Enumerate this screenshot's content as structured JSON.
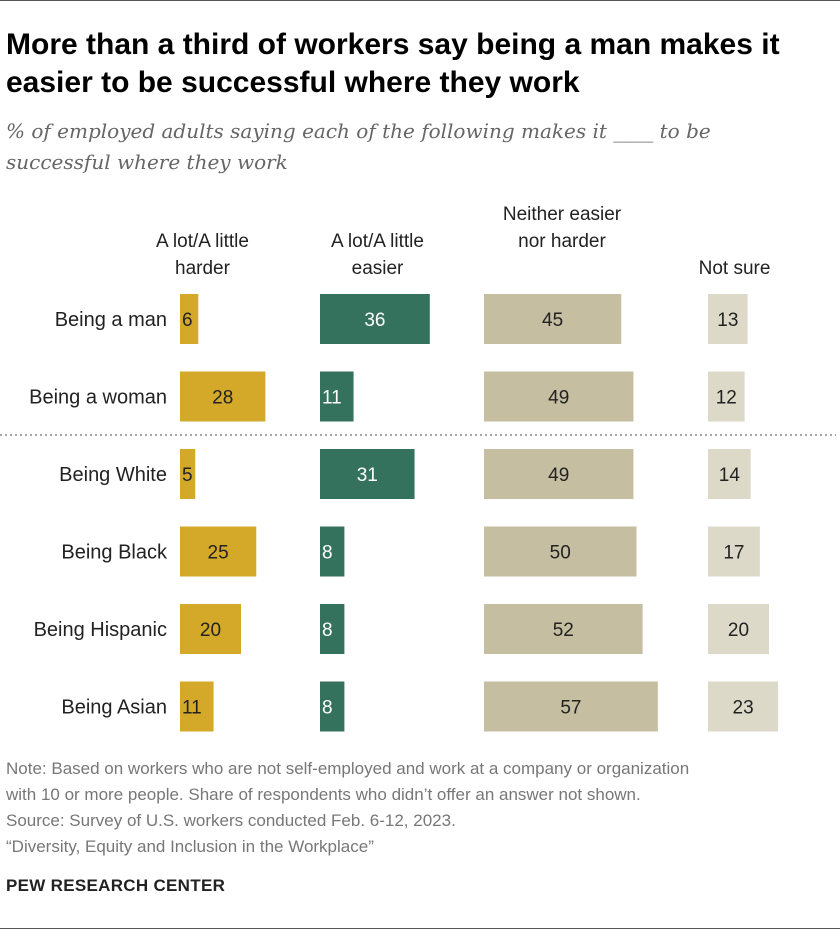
{
  "title": "More than a third of workers say being a man makes it easier to be successful where they work",
  "subtitle": "% of employed adults saying each of the following makes it ____ to be successful where they work",
  "columns": [
    "A lot/A little harder",
    "A lot/A little easier",
    "Neither easier nor harder",
    "Not sure"
  ],
  "colors": {
    "harder": "#d4a92a",
    "easier": "#35725e",
    "neither": "#c5bea0",
    "not_sure": "#dcd9c9",
    "value_dark": "#222222",
    "value_light": "#ffffff",
    "divider": "#888888"
  },
  "chart_data": {
    "type": "bar",
    "title": "More than a third of workers say being a man makes it easier to be successful where they work",
    "unit": "%",
    "categories": [
      "Being a man",
      "Being a woman",
      "Being White",
      "Being Black",
      "Being Hispanic",
      "Being Asian"
    ],
    "series": [
      {
        "name": "A lot/A little harder",
        "values": [
          6,
          28,
          5,
          25,
          20,
          11
        ]
      },
      {
        "name": "A lot/A little easier",
        "values": [
          36,
          11,
          31,
          8,
          8,
          8
        ]
      },
      {
        "name": "Neither easier nor harder",
        "values": [
          45,
          49,
          49,
          50,
          52,
          57
        ]
      },
      {
        "name": "Not sure",
        "values": [
          13,
          12,
          14,
          17,
          20,
          23
        ]
      }
    ],
    "group_divider_after": "Being a woman"
  },
  "notes": [
    "Note: Based on workers who are not self-employed and work at a company or organization",
    "with 10 or more people. Share of respondents who didn’t offer an answer not shown.",
    "Source: Survey of U.S. workers conducted Feb. 6-12, 2023.",
    "“Diversity, Equity and Inclusion in the Workplace”"
  ],
  "brand": "PEW RESEARCH CENTER"
}
